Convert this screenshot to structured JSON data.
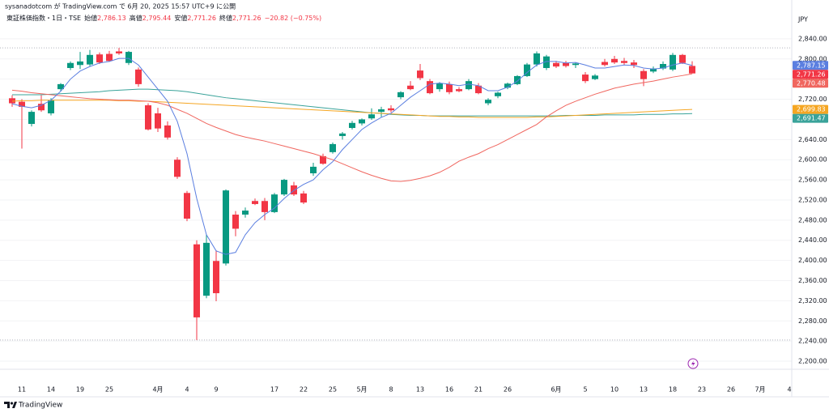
{
  "chart_data": {
    "type": "candlestick",
    "published": "sysanadotcom が TradingView.com で 6月 20, 2025 15:57 UTC+9 に公開",
    "symbol": "東証株価指数・1日・TSE",
    "ohlc_legend": [
      {
        "label": "始値",
        "value": "2,786.13"
      },
      {
        "label": "高値",
        "value": "2,795.44"
      },
      {
        "label": "安値",
        "value": "2,771.26"
      },
      {
        "label": "終値",
        "value": "2,771.26"
      }
    ],
    "change": "−20.82 (−0.75%)",
    "currency": "JPY",
    "brand": "TradingView",
    "categories": [
      null,
      "11",
      null,
      null,
      "14",
      null,
      null,
      "19",
      null,
      null,
      "25",
      null,
      null,
      null,
      null,
      "4月",
      null,
      null,
      "4",
      null,
      null,
      "9",
      null,
      null,
      null,
      null,
      null,
      "17",
      null,
      null,
      "22",
      null,
      null,
      "25",
      null,
      null,
      "5月",
      null,
      null,
      "8",
      null,
      null,
      "13",
      null,
      null,
      "16",
      null,
      null,
      "21",
      null,
      null,
      "26",
      null,
      null,
      null,
      null,
      "6月",
      null,
      null,
      "5",
      null,
      null,
      "10",
      null,
      null,
      "13",
      null,
      null,
      "18",
      null,
      null,
      "23",
      null,
      null,
      "26",
      null,
      null,
      "7月",
      null,
      null,
      "4"
    ],
    "open": [
      2722,
      2715,
      2671,
      2711,
      2692,
      2740,
      2782,
      2788,
      2789,
      2809,
      2810,
      2815,
      2792,
      2779,
      2708,
      2692,
      2668,
      2600,
      2534,
      2432,
      2330,
      2399,
      2394,
      2491,
      2491,
      2518,
      2518,
      2496,
      2531,
      2549,
      2533,
      2573,
      2607,
      2615,
      2647,
      2663,
      2672,
      2682,
      2695,
      2702,
      2724,
      2747,
      2777,
      2756,
      2740,
      2750,
      2740,
      2740,
      2747,
      2712,
      2726,
      2743,
      2750,
      2766,
      2789,
      2782,
      2792,
      2792,
      2788,
      2769,
      2760,
      2794,
      2800,
      2796,
      2793,
      2776,
      2775,
      2781,
      2779,
      2808,
      2786.13,
      null,
      null,
      null,
      null,
      null,
      null,
      null,
      null,
      null,
      null
    ],
    "high": [
      2728,
      2720,
      2698,
      2728,
      2722,
      2752,
      2795,
      2814,
      2818,
      2813,
      2816,
      2822,
      2816,
      2783,
      2712,
      2703,
      2676,
      2605,
      2538,
      2440,
      2452,
      2420,
      2541,
      2498,
      2505,
      2523,
      2524,
      2534,
      2562,
      2556,
      2538,
      2594,
      2612,
      2634,
      2655,
      2677,
      2682,
      2702,
      2705,
      2708,
      2736,
      2756,
      2790,
      2760,
      2754,
      2755,
      2744,
      2760,
      2752,
      2722,
      2735,
      2753,
      2768,
      2792,
      2815,
      2808,
      2796,
      2796,
      2793,
      2774,
      2770,
      2800,
      2806,
      2802,
      2798,
      2780,
      2785,
      2795,
      2812,
      2810,
      2795.44,
      null,
      null,
      null,
      null,
      null,
      null,
      null,
      null,
      null,
      null
    ],
    "low": [
      2705,
      2622,
      2666,
      2695,
      2688,
      2736,
      2778,
      2780,
      2786,
      2790,
      2794,
      2808,
      2788,
      2745,
      2658,
      2655,
      2640,
      2562,
      2478,
      2242,
      2325,
      2319,
      2390,
      2448,
      2485,
      2510,
      2480,
      2494,
      2528,
      2528,
      2512,
      2568,
      2590,
      2612,
      2640,
      2660,
      2668,
      2679,
      2685,
      2694,
      2720,
      2738,
      2758,
      2730,
      2735,
      2730,
      2734,
      2738,
      2730,
      2708,
      2722,
      2740,
      2748,
      2764,
      2785,
      2778,
      2782,
      2783,
      2782,
      2752,
      2758,
      2785,
      2790,
      2788,
      2782,
      2746,
      2772,
      2778,
      2776,
      2790,
      2771.26,
      null,
      null,
      null,
      null,
      null,
      null,
      null,
      null,
      null,
      null
    ],
    "close": [
      2712,
      2705,
      2695,
      2698,
      2718,
      2750,
      2792,
      2795,
      2808,
      2793,
      2796,
      2811,
      2814,
      2750,
      2660,
      2662,
      2644,
      2566,
      2483,
      2287,
      2435,
      2335,
      2539,
      2463,
      2499,
      2512,
      2496,
      2531,
      2560,
      2531,
      2515,
      2586,
      2592,
      2631,
      2652,
      2673,
      2680,
      2690,
      2700,
      2698,
      2734,
      2740,
      2762,
      2732,
      2752,
      2734,
      2736,
      2756,
      2732,
      2719,
      2733,
      2751,
      2766,
      2789,
      2811,
      2805,
      2785,
      2786,
      2791,
      2756,
      2767,
      2788,
      2793,
      2792,
      2788,
      2760,
      2781,
      2790,
      2808,
      2792.08,
      2771.26,
      null,
      null,
      null,
      null,
      null,
      null,
      null,
      null,
      null,
      null
    ],
    "up_color": "#089981",
    "down_color": "#f23645",
    "last_label": "2,771.26",
    "series": [
      {
        "color": "#3aa39a",
        "last_label": "2,691.47",
        "values": [
          2729,
          2729,
          2729,
          2729,
          2730,
          2731,
          2732,
          2733,
          2734,
          2735,
          2737,
          2738,
          2739,
          2740,
          2740,
          2739,
          2738,
          2737,
          2735,
          2732,
          2729,
          2726,
          2723,
          2721,
          2719,
          2717,
          2715,
          2713,
          2711,
          2709,
          2707,
          2705,
          2703,
          2701,
          2699,
          2697,
          2695,
          2693,
          2692,
          2690,
          2689,
          2688,
          2688,
          2687,
          2687,
          2687,
          2687,
          2687,
          2687,
          2687,
          2687,
          2687,
          2687,
          2687,
          2687,
          2687,
          2687,
          2688,
          2688,
          2688,
          2688,
          2689,
          2689,
          2689,
          2689,
          2690,
          2690,
          2690,
          2691,
          2691,
          2691.47,
          null,
          null,
          null,
          null,
          null,
          null,
          null,
          null,
          null,
          null
        ]
      },
      {
        "color": "#f5a623",
        "last_label": "2,699.83",
        "values": [
          2716,
          2717,
          2717,
          2718,
          2718,
          2718,
          2718,
          2718,
          2718,
          2718,
          2718,
          2717,
          2717,
          2716,
          2716,
          2715,
          2714,
          2713,
          2712,
          2711,
          2710,
          2709,
          2708,
          2707,
          2706,
          2705,
          2704,
          2703,
          2702,
          2701,
          2700,
          2699,
          2698,
          2697,
          2696,
          2695,
          2694,
          2693,
          2692,
          2691,
          2690,
          2689,
          2688,
          2687,
          2686,
          2686,
          2685,
          2685,
          2684,
          2684,
          2684,
          2684,
          2684,
          2684,
          2685,
          2685,
          2686,
          2687,
          2688,
          2689,
          2690,
          2691,
          2692,
          2693,
          2694,
          2695,
          2696,
          2697,
          2698,
          2699,
          2699.83,
          null,
          null,
          null,
          null,
          null,
          null,
          null,
          null,
          null,
          null
        ]
      },
      {
        "color": "#f0665f",
        "last_label": "2,770.48",
        "values": [
          2738,
          2736,
          2733,
          2731,
          2729,
          2727,
          2725,
          2723,
          2721,
          2720,
          2719,
          2718,
          2718,
          2717,
          2716,
          2713,
          2708,
          2700,
          2692,
          2682,
          2672,
          2664,
          2657,
          2650,
          2645,
          2641,
          2637,
          2632,
          2627,
          2622,
          2617,
          2612,
          2606,
          2600,
          2592,
          2584,
          2576,
          2569,
          2563,
          2558,
          2557,
          2559,
          2563,
          2568,
          2575,
          2585,
          2597,
          2605,
          2612,
          2622,
          2630,
          2640,
          2650,
          2660,
          2670,
          2685,
          2697,
          2708,
          2716,
          2723,
          2730,
          2736,
          2742,
          2746,
          2750,
          2753,
          2756,
          2760,
          2764,
          2767,
          2770.48,
          null,
          null,
          null,
          null,
          null,
          null,
          null,
          null,
          null,
          null
        ]
      },
      {
        "color": "#5b7fe0",
        "last_label": "2,787.15",
        "values": [
          2711,
          2706,
          2703,
          2708,
          2718,
          2736,
          2760,
          2776,
          2785,
          2792,
          2795,
          2801,
          2801,
          2788,
          2764,
          2740,
          2716,
          2676,
          2612,
          2523,
          2451,
          2419,
          2412,
          2416,
          2451,
          2475,
          2491,
          2504,
          2523,
          2539,
          2551,
          2560,
          2580,
          2596,
          2620,
          2640,
          2660,
          2673,
          2684,
          2692,
          2708,
          2724,
          2737,
          2750,
          2752,
          2750,
          2747,
          2750,
          2747,
          2737,
          2737,
          2744,
          2756,
          2773,
          2788,
          2795,
          2795,
          2792,
          2793,
          2788,
          2782,
          2782,
          2785,
          2788,
          2787,
          2782,
          2780,
          2782,
          2788,
          2792,
          2787.15,
          null,
          null,
          null,
          null,
          null,
          null,
          null,
          null,
          null,
          null
        ]
      }
    ],
    "ylim": [
      2184,
      2917
    ],
    "yticks": [
      {
        "value": 2200,
        "label": "2,200.00"
      },
      {
        "value": 2240,
        "label": "2,240.00"
      },
      {
        "value": 2280,
        "label": "2,280.00"
      },
      {
        "value": 2320,
        "label": "2,320.00"
      },
      {
        "value": 2360,
        "label": "2,360.00"
      },
      {
        "value": 2400,
        "label": "2,400.00"
      },
      {
        "value": 2440,
        "label": "2,440.00"
      },
      {
        "value": 2480,
        "label": "2,480.00"
      },
      {
        "value": 2520,
        "label": "2,520.00"
      },
      {
        "value": 2560,
        "label": "2,560.00"
      },
      {
        "value": 2600,
        "label": "2,600.00"
      },
      {
        "value": 2640,
        "label": "2,640.00"
      },
      {
        "value": 2680,
        "label": "2,680.00"
      },
      {
        "value": 2720,
        "label": "2,720.00"
      },
      {
        "value": 2760,
        "label": "2,760.00"
      },
      {
        "value": 2800,
        "label": "2,800.00"
      },
      {
        "value": 2840,
        "label": "2,840.00"
      }
    ],
    "grid": true
  }
}
